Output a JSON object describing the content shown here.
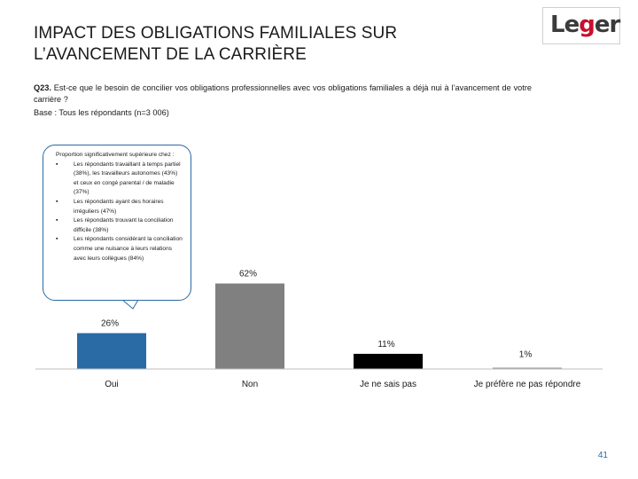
{
  "header": {
    "title_line1": "IMPACT DES OBLIGATIONS FAMILIALES SUR",
    "title_line2": "L’AVANCEMENT DE LA CARRIÈRE",
    "logo_text_a": "Le",
    "logo_text_g": "g",
    "logo_text_b": "er"
  },
  "question": {
    "code": "Q23.",
    "text": "Est-ce que le besoin de concilier vos obligations professionnelles avec vos obligations familiales a déjà nui à l’avancement de votre carrière ?",
    "base": "Base : Tous les répondants (n=3 006)"
  },
  "callout": {
    "intro": "Proportion significativement supérieure chez :",
    "items": [
      "Les répondants travaillant à temps partiel (38%), les travailleurs autonomes (43%) et ceux en congé parental / de maladie (37%)",
      "Les répondants ayant des horaires irréguliers (47%)",
      "Les répondants trouvant la conciliation difficile (38%)",
      "Les répondants considérant la conciliation comme une nuisance à leurs relations avec leurs collègues (84%)"
    ]
  },
  "colors": {
    "bar_oui": "#2a6aa5",
    "bar_non": "#808080",
    "bar_nsp": "#000000",
    "bar_refus": "#a0a0a0",
    "accent": "#2a6aa5"
  },
  "chart_data": {
    "type": "bar",
    "categories": [
      "Oui",
      "Non",
      "Je ne sais pas",
      "Je préfère ne pas répondre"
    ],
    "values": [
      26,
      62,
      11,
      1
    ],
    "data_labels": [
      "26%",
      "62%",
      "11%",
      "1%"
    ],
    "ylim": [
      0,
      100
    ],
    "xlabel": "",
    "ylabel": ""
  },
  "footer": {
    "page": "41"
  }
}
